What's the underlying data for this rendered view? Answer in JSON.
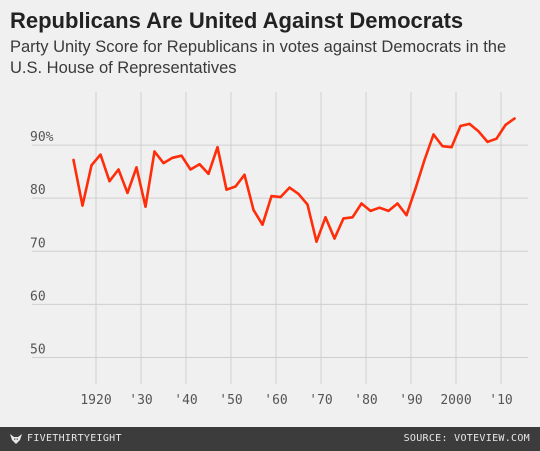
{
  "header": {
    "title": "Republicans Are United Against Democrats",
    "subtitle": "Party Unity Score for Republicans in votes against Democrats in the U.S. House of Representatives"
  },
  "footer": {
    "logo_text": "FIVETHIRTYEIGHT",
    "source_text": "SOURCE: VOTEVIEW.COM"
  },
  "colors": {
    "line": "#ff2d0a",
    "grid": "#cfcfcf",
    "background": "#f0f0f0",
    "footer_bg": "#3c3c3c"
  },
  "chart_data": {
    "type": "line",
    "grid": true,
    "xlim": [
      1912,
      2016
    ],
    "ylim": [
      45,
      100
    ],
    "x_ticks": [
      1920,
      1930,
      1940,
      1950,
      1960,
      1970,
      1980,
      1990,
      2000,
      2010
    ],
    "x_tick_labels": [
      "1920",
      "'30",
      "'40",
      "'50",
      "'60",
      "'70",
      "'80",
      "'90",
      "2000",
      "'10"
    ],
    "y_ticks": [
      50,
      60,
      70,
      80,
      90
    ],
    "y_tick_labels": [
      "50",
      "60",
      "70",
      "80",
      "90%"
    ],
    "series": [
      {
        "x": [
          1915,
          1917,
          1919,
          1921,
          1923,
          1925,
          1927,
          1929,
          1931,
          1933,
          1935,
          1937,
          1939,
          1941,
          1943,
          1945,
          1947,
          1949,
          1951,
          1953,
          1955,
          1957,
          1959,
          1961,
          1963,
          1965,
          1967,
          1969,
          1971,
          1973,
          1975,
          1977,
          1979,
          1981,
          1983,
          1985,
          1987,
          1989,
          1991,
          1993,
          1995,
          1997,
          1999,
          2001,
          2003,
          2005,
          2007,
          2009,
          2011,
          2013
        ],
        "y": [
          87.2,
          78.6,
          86.2,
          88.2,
          83.2,
          85.4,
          81.0,
          85.8,
          78.4,
          88.8,
          86.6,
          87.6,
          88.0,
          85.4,
          86.4,
          84.6,
          89.6,
          81.6,
          82.2,
          84.4,
          77.8,
          75.0,
          80.4,
          80.2,
          82.0,
          80.8,
          78.8,
          71.8,
          76.4,
          72.4,
          76.2,
          76.4,
          79.0,
          77.6,
          78.2,
          77.6,
          79.0,
          76.8,
          81.8,
          87.2,
          92.0,
          89.8,
          89.6,
          93.6,
          94.0,
          92.6,
          90.6,
          91.2,
          93.8,
          95.0
        ]
      }
    ]
  }
}
